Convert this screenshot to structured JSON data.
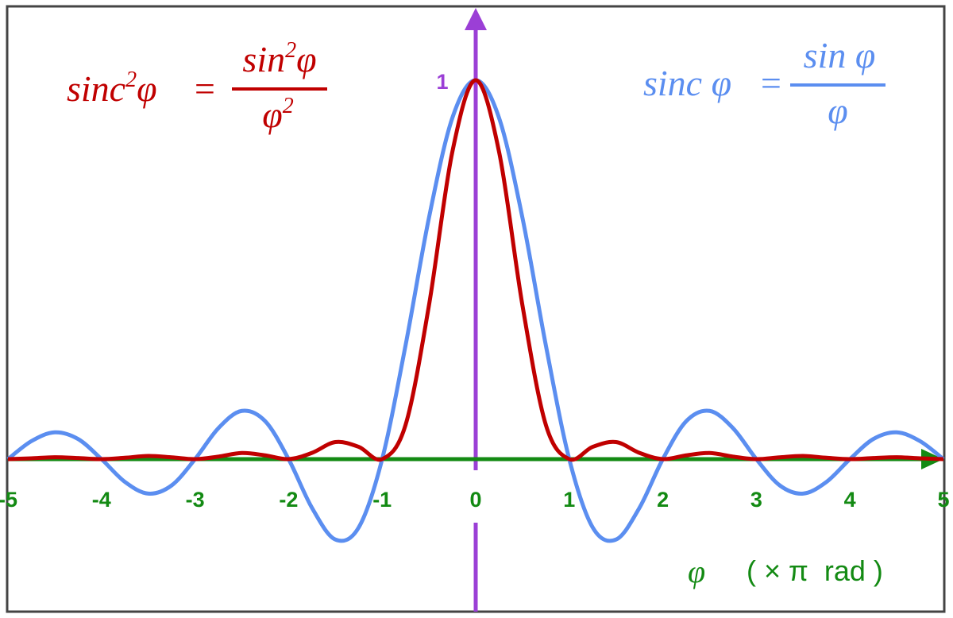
{
  "chart_data": {
    "type": "line",
    "xlabel": {
      "symbol": "φ",
      "unit": "( × π  rad )"
    },
    "xlim": [
      -5,
      5
    ],
    "ylim": [
      -0.4,
      1.2
    ],
    "xticks": [
      "-5",
      "-4",
      "-3",
      "-2",
      "-1",
      "0",
      "1",
      "2",
      "3",
      "4",
      "5"
    ],
    "yticks": [
      "1"
    ],
    "grid": false,
    "x": [
      -5,
      -4.75,
      -4.5,
      -4.25,
      -4,
      -3.75,
      -3.5,
      -3.25,
      -3,
      -2.75,
      -2.5,
      -2.25,
      -2,
      -1.75,
      -1.5,
      -1.25,
      -1,
      -0.75,
      -0.5,
      -0.25,
      0,
      0.25,
      0.5,
      0.75,
      1,
      1.25,
      1.5,
      1.75,
      2,
      2.25,
      2.5,
      2.75,
      3,
      3.25,
      3.5,
      3.75,
      4,
      4.25,
      4.5,
      4.75,
      5
    ],
    "series": [
      {
        "name": "sinc φ = sin φ / φ",
        "color": "#5b8ef0",
        "values": [
          0,
          0.0474,
          0.0707,
          0.053,
          0,
          -0.06,
          -0.0909,
          -0.0693,
          0,
          0.0818,
          0.1273,
          0.1,
          0,
          -0.1286,
          -0.2122,
          -0.1801,
          0,
          0.3001,
          0.6366,
          0.9003,
          1,
          0.9003,
          0.6366,
          0.3001,
          0,
          -0.1801,
          -0.2122,
          -0.1286,
          0,
          0.1,
          0.1273,
          0.0818,
          0,
          -0.0693,
          -0.0909,
          -0.06,
          0,
          0.053,
          0.0707,
          0.0474,
          0
        ]
      },
      {
        "name": "sinc²φ = sin²φ / φ²",
        "color": "#c00000",
        "values": [
          0,
          0.0022,
          0.005,
          0.0028,
          0,
          0.0036,
          0.0083,
          0.0048,
          0,
          0.0067,
          0.0162,
          0.01,
          0,
          0.0165,
          0.045,
          0.0324,
          0,
          0.0901,
          0.4053,
          0.8106,
          1,
          0.8106,
          0.4053,
          0.0901,
          0,
          0.0324,
          0.045,
          0.0165,
          0,
          0.01,
          0.0162,
          0.0067,
          0,
          0.0048,
          0.0083,
          0.0036,
          0,
          0.0028,
          0.005,
          0.0022,
          0
        ]
      }
    ],
    "axis_colors": {
      "x": "#138a13",
      "y": "#9b3fd6"
    }
  },
  "formulas": {
    "sinc2": {
      "lhs": "sinc",
      "lhs_sup": "2",
      "lhs_var": "φ",
      "eq": "=",
      "num": "sin",
      "num_sup": "2",
      "num_var": "φ",
      "den": "φ",
      "den_sup": "2"
    },
    "sinc": {
      "lhs": "sinc φ",
      "eq": "=",
      "num": "sin φ",
      "den": "φ"
    }
  }
}
